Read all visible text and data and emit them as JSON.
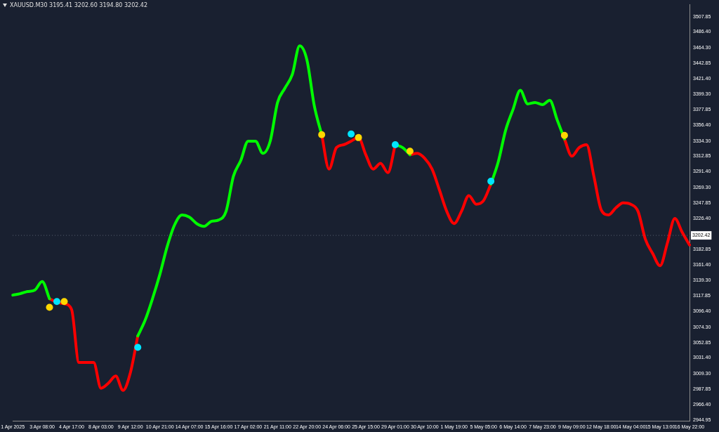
{
  "chart_data": {
    "type": "line",
    "title": "XAUUSD.M30 3195.41 3202.60 3194.80 3202.42",
    "categories": [
      "1 Apr 2025",
      null,
      null,
      null,
      "3 Apr 08:00",
      null,
      null,
      null,
      "4 Apr 17:00",
      null,
      null,
      null,
      "8 Apr 03:00",
      null,
      null,
      null,
      "9 Apr 12:00",
      null,
      null,
      null,
      "10 Apr 21:00",
      null,
      null,
      null,
      "14 Apr 07:00",
      null,
      null,
      null,
      "15 Apr 16:00",
      null,
      null,
      null,
      "17 Apr 02:00",
      null,
      null,
      null,
      "21 Apr 11:00",
      null,
      null,
      null,
      "22 Apr 20:00",
      null,
      null,
      null,
      "24 Apr 06:00",
      null,
      null,
      null,
      "25 Apr 15:00",
      null,
      null,
      null,
      "29 Apr 01:00",
      null,
      null,
      null,
      "30 Apr 10:00",
      null,
      null,
      null,
      "1 May 19:00",
      null,
      null,
      null,
      "5 May 05:00",
      null,
      null,
      null,
      "6 May 14:00",
      null,
      null,
      null,
      "7 May 23:00",
      null,
      null,
      null,
      "9 May 09:00",
      null,
      null,
      null,
      "12 May 18:00",
      null,
      null,
      null,
      "14 May 04:00",
      null,
      null,
      null,
      "15 May 13:00",
      null,
      null,
      null,
      "16 May 22:00"
    ],
    "series": [
      {
        "color": "#00ff00",
        "values": [
          3119,
          3121,
          3124,
          3126,
          3138,
          3114,
          null,
          null,
          null,
          null,
          null,
          null,
          null,
          null,
          null,
          null,
          null,
          3062,
          3084,
          3114,
          3148,
          3187,
          3217,
          3231,
          3228,
          3219,
          3215,
          3222,
          3224,
          3236,
          3285,
          3307,
          3334,
          3334,
          3317,
          3334,
          3388,
          3408,
          3427,
          3467,
          3447,
          3383,
          3343,
          null,
          null,
          null,
          null,
          null,
          null,
          null,
          null,
          null,
          3329,
          3325,
          3315,
          null,
          null,
          null,
          null,
          null,
          null,
          null,
          null,
          null,
          null,
          3274,
          3305,
          3349,
          3378,
          3405,
          3386,
          3388,
          3385,
          3391,
          3364,
          3337,
          null,
          null,
          null,
          null,
          null,
          null,
          null,
          null,
          null,
          null,
          null,
          null,
          null,
          null,
          null,
          null,
          null
        ]
      },
      {
        "color": "#ff0000",
        "values": [
          null,
          null,
          null,
          null,
          null,
          3114,
          3109,
          3107,
          3099,
          3025,
          3025,
          3025,
          2989,
          2996,
          3006,
          2986,
          3011,
          3062,
          null,
          null,
          null,
          null,
          null,
          null,
          null,
          null,
          null,
          null,
          null,
          null,
          null,
          null,
          null,
          null,
          null,
          null,
          null,
          null,
          null,
          null,
          null,
          null,
          3343,
          3295,
          3325,
          3329,
          3334,
          3339,
          3315,
          3295,
          3303,
          3290,
          3329,
          null,
          3315,
          3317,
          3310,
          3295,
          3266,
          3236,
          3219,
          3236,
          3258,
          3246,
          3251,
          3274,
          null,
          null,
          null,
          null,
          null,
          null,
          null,
          null,
          null,
          3337,
          3313,
          3325,
          3329,
          3285,
          3238,
          3231,
          3241,
          3248,
          3246,
          3236,
          3197,
          3177,
          3160,
          3192,
          3226,
          3207,
          3189
        ]
      },
      {
        "type": "scatter",
        "color": "#ffd700",
        "marker": "circle",
        "values": [
          null,
          null,
          null,
          null,
          null,
          3102,
          null,
          3110,
          null,
          null,
          null,
          null,
          null,
          null,
          null,
          null,
          null,
          null,
          null,
          null,
          null,
          null,
          null,
          null,
          null,
          null,
          null,
          null,
          null,
          null,
          null,
          null,
          null,
          null,
          null,
          null,
          null,
          null,
          null,
          null,
          null,
          null,
          3343,
          null,
          null,
          null,
          null,
          3339,
          null,
          null,
          null,
          null,
          null,
          null,
          3320,
          null,
          null,
          null,
          null,
          null,
          null,
          null,
          null,
          null,
          null,
          null,
          null,
          null,
          null,
          null,
          null,
          null,
          null,
          null,
          null,
          3342,
          null,
          null,
          null,
          null,
          null,
          null,
          null,
          null,
          null,
          null,
          null,
          null,
          null,
          null,
          null,
          null,
          null
        ]
      },
      {
        "type": "scatter",
        "color": "#00e5ff",
        "marker": "circle",
        "values": [
          null,
          null,
          null,
          null,
          null,
          null,
          3110,
          null,
          null,
          null,
          null,
          null,
          null,
          null,
          null,
          null,
          null,
          3046,
          null,
          null,
          null,
          null,
          null,
          null,
          null,
          null,
          null,
          null,
          null,
          null,
          null,
          null,
          null,
          null,
          null,
          null,
          null,
          null,
          null,
          null,
          null,
          null,
          null,
          null,
          null,
          null,
          3344,
          null,
          null,
          null,
          null,
          null,
          3329,
          null,
          null,
          null,
          null,
          null,
          null,
          null,
          null,
          null,
          null,
          null,
          null,
          3278,
          null,
          null,
          null,
          null,
          null,
          null,
          null,
          null,
          null,
          null,
          null,
          null,
          null,
          null,
          null,
          null,
          null,
          null,
          null,
          null,
          null,
          null,
          null,
          null,
          null,
          null,
          null
        ]
      }
    ],
    "ylim": [
      2943,
      3525
    ],
    "yticks": [
      3507.85,
      {
        "value": 3486.4,
        "label": "3486.40"
      },
      {
        "value": 3464.3,
        "label": "3464.30"
      },
      3442.85,
      {
        "value": 3421.4,
        "label": "3421.40"
      },
      {
        "value": 3399.3,
        "label": "3399.30"
      },
      3377.85,
      {
        "value": 3356.4,
        "label": "3356.40"
      },
      {
        "value": 3334.3,
        "label": "3334.30"
      },
      3312.85,
      {
        "value": 3291.4,
        "label": "3291.40"
      },
      {
        "value": 3269.3,
        "label": "3269.30"
      },
      3247.85,
      {
        "value": 3226.4,
        "label": "3226.40"
      },
      3182.85,
      {
        "value": 3161.4,
        "label": "3161.40"
      },
      {
        "value": 3139.3,
        "label": "3139.30"
      },
      3117.85,
      {
        "value": 3096.4,
        "label": "3096.40"
      },
      {
        "value": 3074.3,
        "label": "3074.30"
      },
      3052.85,
      {
        "value": 3031.4,
        "label": "3031.40"
      },
      {
        "value": 3009.3,
        "label": "3009.30"
      },
      2987.85,
      {
        "value": 2966.4,
        "label": "2966.40"
      },
      2944.95
    ],
    "ref_lines": [
      {
        "axis": "y",
        "value": 3202.42,
        "label": "3202.42"
      }
    ],
    "marker": "none",
    "grid": false,
    "legend": false
  }
}
